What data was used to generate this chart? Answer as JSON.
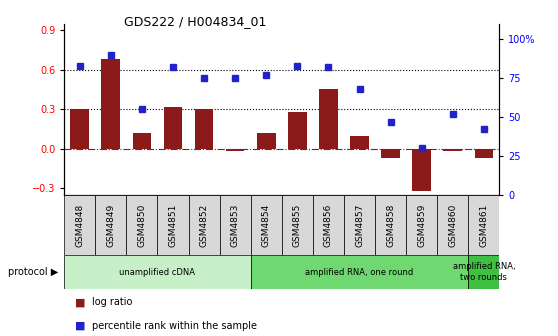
{
  "title": "GDS222 / H004834_01",
  "samples": [
    "GSM4848",
    "GSM4849",
    "GSM4850",
    "GSM4851",
    "GSM4852",
    "GSM4853",
    "GSM4854",
    "GSM4855",
    "GSM4856",
    "GSM4857",
    "GSM4858",
    "GSM4859",
    "GSM4860",
    "GSM4861"
  ],
  "log_ratio": [
    0.3,
    0.68,
    0.12,
    0.32,
    0.3,
    -0.02,
    0.12,
    0.28,
    0.45,
    0.1,
    -0.07,
    -0.32,
    -0.02,
    -0.07
  ],
  "percentile_rank": [
    83,
    90,
    55,
    82,
    75,
    75,
    77,
    83,
    82,
    68,
    47,
    30,
    52,
    42
  ],
  "protocol_groups": [
    {
      "label": "unamplified cDNA",
      "start": 0,
      "end": 5,
      "color": "#C8F0C8"
    },
    {
      "label": "amplified RNA, one round",
      "start": 6,
      "end": 12,
      "color": "#70D870"
    },
    {
      "label": "amplified RNA,\ntwo rounds",
      "start": 13,
      "end": 13,
      "color": "#40C040"
    }
  ],
  "bar_color": "#8B1A1A",
  "dot_color": "#2222CC",
  "ylim_left": [
    -0.35,
    0.95
  ],
  "ylim_right": [
    0,
    110
  ],
  "yticks_left": [
    -0.3,
    0.0,
    0.3,
    0.6,
    0.9
  ],
  "yticks_right": [
    0,
    25,
    50,
    75,
    100
  ],
  "hline_y": [
    0.3,
    0.6
  ],
  "zero_line_y": 0.0,
  "background_color": "#ffffff"
}
